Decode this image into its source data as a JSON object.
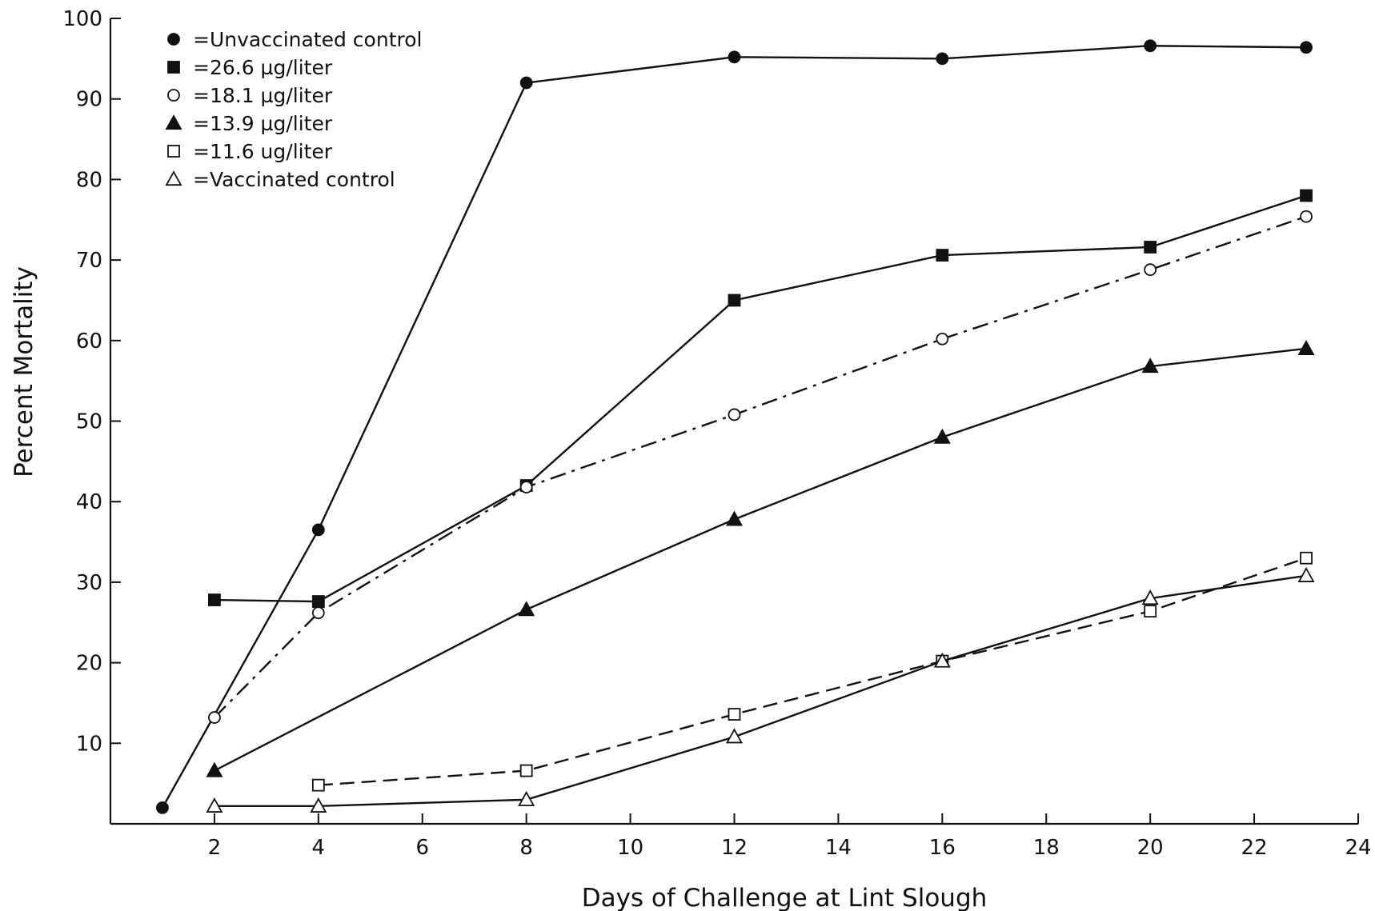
{
  "chart_data": {
    "type": "line",
    "title": "",
    "xlabel": "Days of Challenge at Lint Slough",
    "ylabel": "Percent Mortality",
    "xlim": [
      0,
      24
    ],
    "ylim": [
      0,
      100
    ],
    "xticks": [
      2,
      4,
      6,
      8,
      10,
      12,
      14,
      16,
      18,
      20,
      22,
      24
    ],
    "yticks": [
      10,
      20,
      30,
      40,
      50,
      60,
      70,
      80,
      90,
      100
    ],
    "xtick_labels": [
      "2",
      "4",
      "6",
      "8",
      "10",
      "12",
      "14",
      "16",
      "18",
      "20",
      "22",
      "24"
    ],
    "ytick_labels": [
      "10",
      "20",
      "30",
      "40",
      "50",
      "60",
      "70",
      "80",
      "90",
      "100"
    ],
    "grid": false,
    "legend_position": "top-left",
    "series": [
      {
        "name": "=Unvaccinated control",
        "marker": "filled-circle",
        "line": "solid",
        "x": [
          1,
          4,
          8,
          12,
          16,
          20,
          23
        ],
        "y": [
          2,
          36.5,
          92,
          95.2,
          95,
          96.6,
          96.4
        ]
      },
      {
        "name": "=26.6 µg/liter",
        "marker": "filled-square",
        "line": "solid",
        "x": [
          2,
          4,
          8,
          12,
          16,
          20,
          23
        ],
        "y": [
          27.8,
          27.6,
          42,
          65,
          70.6,
          71.6,
          78
        ]
      },
      {
        "name": "=18.1 µg/liter",
        "marker": "open-circle",
        "line": "dash-dot",
        "x": [
          2,
          4,
          8,
          12,
          16,
          20,
          23
        ],
        "y": [
          13.2,
          26.2,
          41.8,
          50.8,
          60.2,
          68.8,
          75.4
        ]
      },
      {
        "name": "=13.9 µg/liter",
        "marker": "filled-triangle",
        "line": "solid",
        "x": [
          2,
          8,
          12,
          16,
          20,
          23
        ],
        "y": [
          6.6,
          26.6,
          37.8,
          48,
          56.8,
          59
        ]
      },
      {
        "name": "=11.6 ug/liter",
        "marker": "open-square",
        "line": "dashed",
        "x": [
          4,
          8,
          12,
          16,
          20,
          23
        ],
        "y": [
          4.8,
          6.6,
          13.6,
          20.2,
          26.4,
          33
        ]
      },
      {
        "name": "=Vaccinated control",
        "marker": "open-triangle",
        "line": "solid",
        "x": [
          2,
          4,
          8,
          12,
          16,
          20,
          23
        ],
        "y": [
          2.2,
          2.2,
          3,
          10.8,
          20.2,
          28,
          30.8
        ]
      }
    ]
  }
}
